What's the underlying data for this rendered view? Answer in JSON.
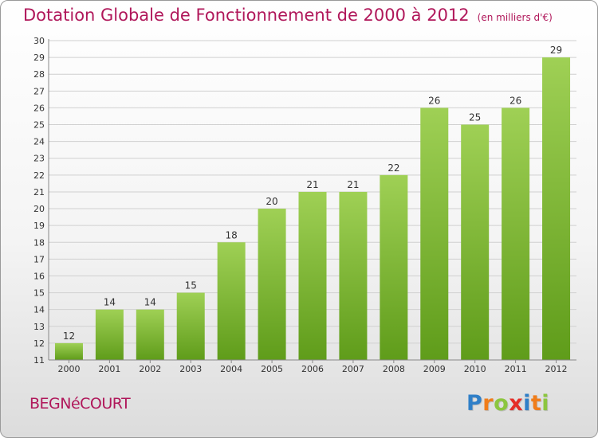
{
  "header": {
    "title": "Dotation Globale de Fonctionnement de 2000 à 2012",
    "subtitle": "(en milliers d'€)"
  },
  "footer": {
    "town": "BEGNéCOURT",
    "logo_letters": [
      "P",
      "r",
      "o",
      "x",
      "i",
      "t",
      "i"
    ],
    "logo_colors": [
      "#2f7fc8",
      "#f07d1a",
      "#8cc63f",
      "#e52d27",
      "#2f7fc8",
      "#f07d1a",
      "#8cc63f"
    ]
  },
  "colors": {
    "accent": "#b0175a",
    "bar_top": "#9fd055",
    "bar_bottom": "#5f9c1a",
    "grid": "#d0d0d0"
  },
  "chart_data": {
    "type": "bar",
    "title": "Dotation Globale de Fonctionnement de 2000 à 2012",
    "subtitle": "(en milliers d'€)",
    "xlabel": "",
    "ylabel": "",
    "categories": [
      "2000",
      "2001",
      "2002",
      "2003",
      "2004",
      "2005",
      "2006",
      "2007",
      "2008",
      "2009",
      "2010",
      "2011",
      "2012"
    ],
    "values": [
      12,
      14,
      14,
      15,
      18,
      20,
      21,
      21,
      22,
      26,
      25,
      26,
      29
    ],
    "ylim": [
      11,
      30
    ],
    "yticks": [
      11,
      12,
      13,
      14,
      15,
      16,
      17,
      18,
      19,
      20,
      21,
      22,
      23,
      24,
      25,
      26,
      27,
      28,
      29,
      30
    ],
    "grid": true,
    "legend": "none"
  }
}
